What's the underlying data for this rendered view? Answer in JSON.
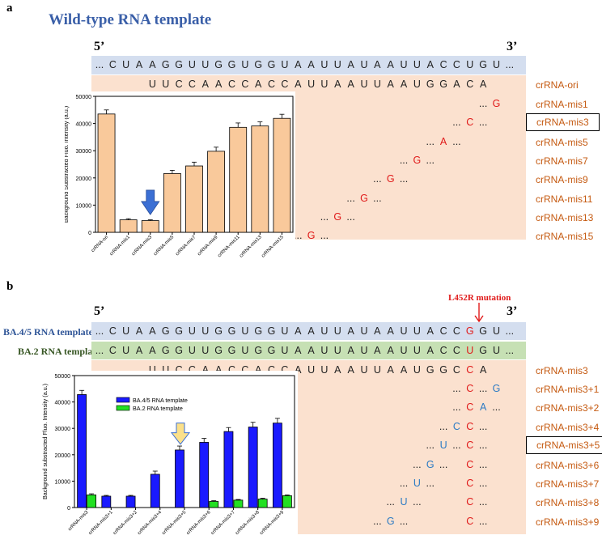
{
  "panel_a": {
    "letter": "a",
    "heading": "Wild-type RNA template",
    "five_prime": "5’",
    "three_prime": "3’",
    "template_seq": [
      "...",
      "C",
      "U",
      "A",
      "A",
      "G",
      "G",
      "U",
      "U",
      "G",
      "G",
      "U",
      "G",
      "G",
      "U",
      "A",
      "A",
      "U",
      "U",
      "A",
      "U",
      "A",
      "A",
      "U",
      "U",
      "A",
      "C",
      "C",
      "U",
      "G",
      "U",
      "..."
    ],
    "crRNA_ori_seq": [
      "U",
      "U",
      "C",
      "C",
      "A",
      "A",
      "C",
      "C",
      "A",
      "C",
      "C",
      "A",
      "U",
      "U",
      "A",
      "A",
      "U",
      "U",
      "A",
      "A",
      "U",
      "G",
      "G",
      "A",
      "C",
      "A"
    ],
    "crRNA_ori_label": "crRNA-ori",
    "mismatch_rows": [
      {
        "label": "crRNA-mis1",
        "letter": "G",
        "boxed": false
      },
      {
        "label": "crRNA-mis3",
        "letter": "C",
        "boxed": true
      },
      {
        "label": "crRNA-mis5",
        "letter": "A",
        "boxed": false
      },
      {
        "label": "crRNA-mis7",
        "letter": "G",
        "boxed": false
      },
      {
        "label": "crRNA-mis9",
        "letter": "G",
        "boxed": false
      },
      {
        "label": "crRNA-mis11",
        "letter": "G",
        "boxed": false
      },
      {
        "label": "crRNA-mis13",
        "letter": "G",
        "boxed": false
      },
      {
        "label": "crRNA-mis15",
        "letter": "G",
        "boxed": false
      }
    ],
    "dots": "..."
  },
  "panel_b": {
    "letter": "b",
    "five_prime": "5’",
    "three_prime": "3’",
    "mutation_label": "L452R mutation",
    "template_ba45_label": "BA.4/5 RNA template",
    "template_ba2_label": "BA.2 RNA template",
    "template_ba45_seq": [
      "...",
      "C",
      "U",
      "A",
      "A",
      "G",
      "G",
      "U",
      "U",
      "G",
      "G",
      "U",
      "G",
      "G",
      "U",
      "A",
      "A",
      "U",
      "U",
      "A",
      "U",
      "A",
      "A",
      "U",
      "U",
      "A",
      "C",
      "C",
      "G",
      "G",
      "U",
      "..."
    ],
    "template_ba2_seq": [
      "...",
      "C",
      "U",
      "A",
      "A",
      "G",
      "G",
      "U",
      "U",
      "G",
      "G",
      "U",
      "G",
      "G",
      "U",
      "A",
      "A",
      "U",
      "U",
      "A",
      "U",
      "A",
      "A",
      "U",
      "U",
      "A",
      "C",
      "C",
      "U",
      "G",
      "U",
      "..."
    ],
    "crRNA_mis3_seq": [
      "U",
      "U",
      "C",
      "C",
      "A",
      "A",
      "C",
      "C",
      "A",
      "C",
      "C",
      "A",
      "U",
      "U",
      "A",
      "A",
      "U",
      "U",
      "A",
      "A",
      "U",
      "G",
      "G",
      "C",
      "C",
      "A"
    ],
    "crRNA_mis3_label": "crRNA-mis3",
    "rows": [
      {
        "label": "crRNA-mis3+1",
        "extra": "G",
        "boxed": false
      },
      {
        "label": "crRNA-mis3+2",
        "extra": "A",
        "boxed": false
      },
      {
        "label": "crRNA-mis3+4",
        "extra": "C",
        "boxed": false
      },
      {
        "label": "crRNA-mis3+5",
        "extra": "U",
        "boxed": true
      },
      {
        "label": "crRNA-mis3+6",
        "extra": "G",
        "boxed": false
      },
      {
        "label": "crRNA-mis3+7",
        "extra": "U",
        "boxed": false
      },
      {
        "label": "crRNA-mis3+8",
        "extra": "U",
        "boxed": false
      },
      {
        "label": "crRNA-mis3+9",
        "extra": "G",
        "boxed": false
      }
    ],
    "mis3_letter": "C",
    "dots": "..."
  },
  "chart_data": [
    {
      "type": "bar",
      "title": "",
      "xlabel": "",
      "ylabel": "Background Substracted Fluo. Intensity (a.u.)",
      "ylim": [
        0,
        50000
      ],
      "yticks": [
        "0",
        "10000",
        "20000",
        "30000",
        "40000",
        "50000"
      ],
      "categories": [
        "crRNA-ori",
        "crRNA-mis1",
        "crRNA-mis3",
        "crRNA-mis5",
        "crRNA-mis7",
        "crRNA-mis9",
        "crRNA-mis11",
        "crRNA-mis13",
        "crRNA-mis15"
      ],
      "values": [
        43500,
        4600,
        4300,
        21600,
        24400,
        29800,
        38600,
        39100,
        41900
      ],
      "errors": [
        1500,
        400,
        300,
        1200,
        1400,
        1500,
        1600,
        1500,
        1500
      ],
      "color": "#f9c99b",
      "arrow_at": "crRNA-mis3"
    },
    {
      "type": "bar",
      "title": "",
      "xlabel": "",
      "ylabel": "Background substracted Fluo. Intensity (a.u.)",
      "ylim": [
        0,
        50000
      ],
      "yticks": [
        "0",
        "10000",
        "20000",
        "30000",
        "40000",
        "50000"
      ],
      "categories": [
        "crRNA-mis3",
        "crRNA-mis3+1",
        "crRNA-mis3+2",
        "crRNA-mis3+4",
        "crRNA-mis3+5",
        "crRNA-mis3+6",
        "crRNA-mis3+7",
        "crRNA-mis3+8",
        "crRNA-mis3+9"
      ],
      "series": [
        {
          "name": "BA.4/5 RNA template",
          "color": "#1a1aff",
          "values": [
            42800,
            4300,
            4300,
            12600,
            21800,
            24700,
            28800,
            30500,
            32000
          ],
          "errors": [
            1600,
            300,
            300,
            1200,
            1500,
            1500,
            1500,
            1800,
            1800
          ]
        },
        {
          "name": "BA.2 RNA template",
          "color": "#22e022",
          "values": [
            4800,
            0,
            0,
            0,
            0,
            2300,
            2800,
            3200,
            4500
          ],
          "errors": [
            400,
            0,
            0,
            0,
            0,
            300,
            250,
            300,
            300
          ]
        }
      ],
      "legend": "top-left",
      "arrow_at": "crRNA-mis3+5"
    }
  ]
}
